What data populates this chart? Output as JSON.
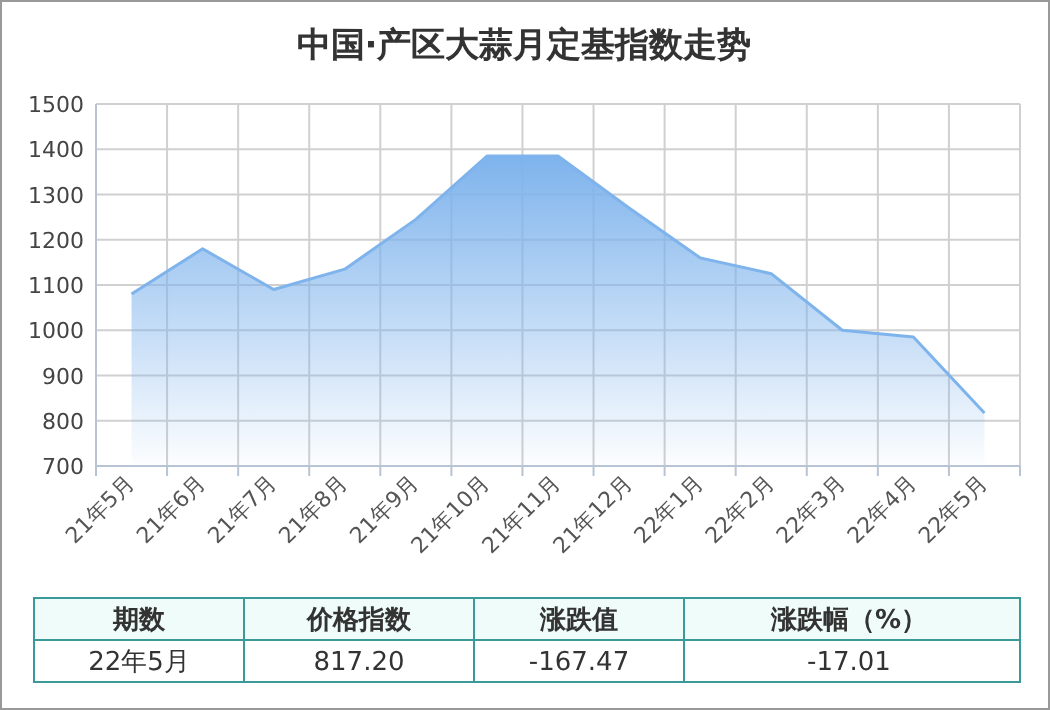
{
  "chart_data": {
    "type": "area",
    "title": "中国·产区大蒜月定基指数走势",
    "categories": [
      "21年5月",
      "21年6月",
      "21年7月",
      "21年8月",
      "21年9月",
      "21年10月",
      "21年11月",
      "21年12月",
      "22年1月",
      "22年2月",
      "22年3月",
      "22年4月",
      "22年5月"
    ],
    "series": [
      {
        "color": "#7eb3ec",
        "values": [
          1080,
          1180,
          1090,
          1135,
          1245,
          1385,
          1385,
          1270,
          1160,
          1125,
          1000,
          985,
          817.2
        ]
      }
    ],
    "ylim": [
      700,
      1500
    ],
    "yticks": [
      700,
      800,
      900,
      1000,
      1100,
      1200,
      1300,
      1400,
      1500
    ],
    "grid": true,
    "annotations": [
      "期数",
      "价格指数",
      "涨跌值",
      "涨跌幅（%）",
      "22年5月",
      "817.20",
      "-167.47",
      "-17.01"
    ]
  }
}
